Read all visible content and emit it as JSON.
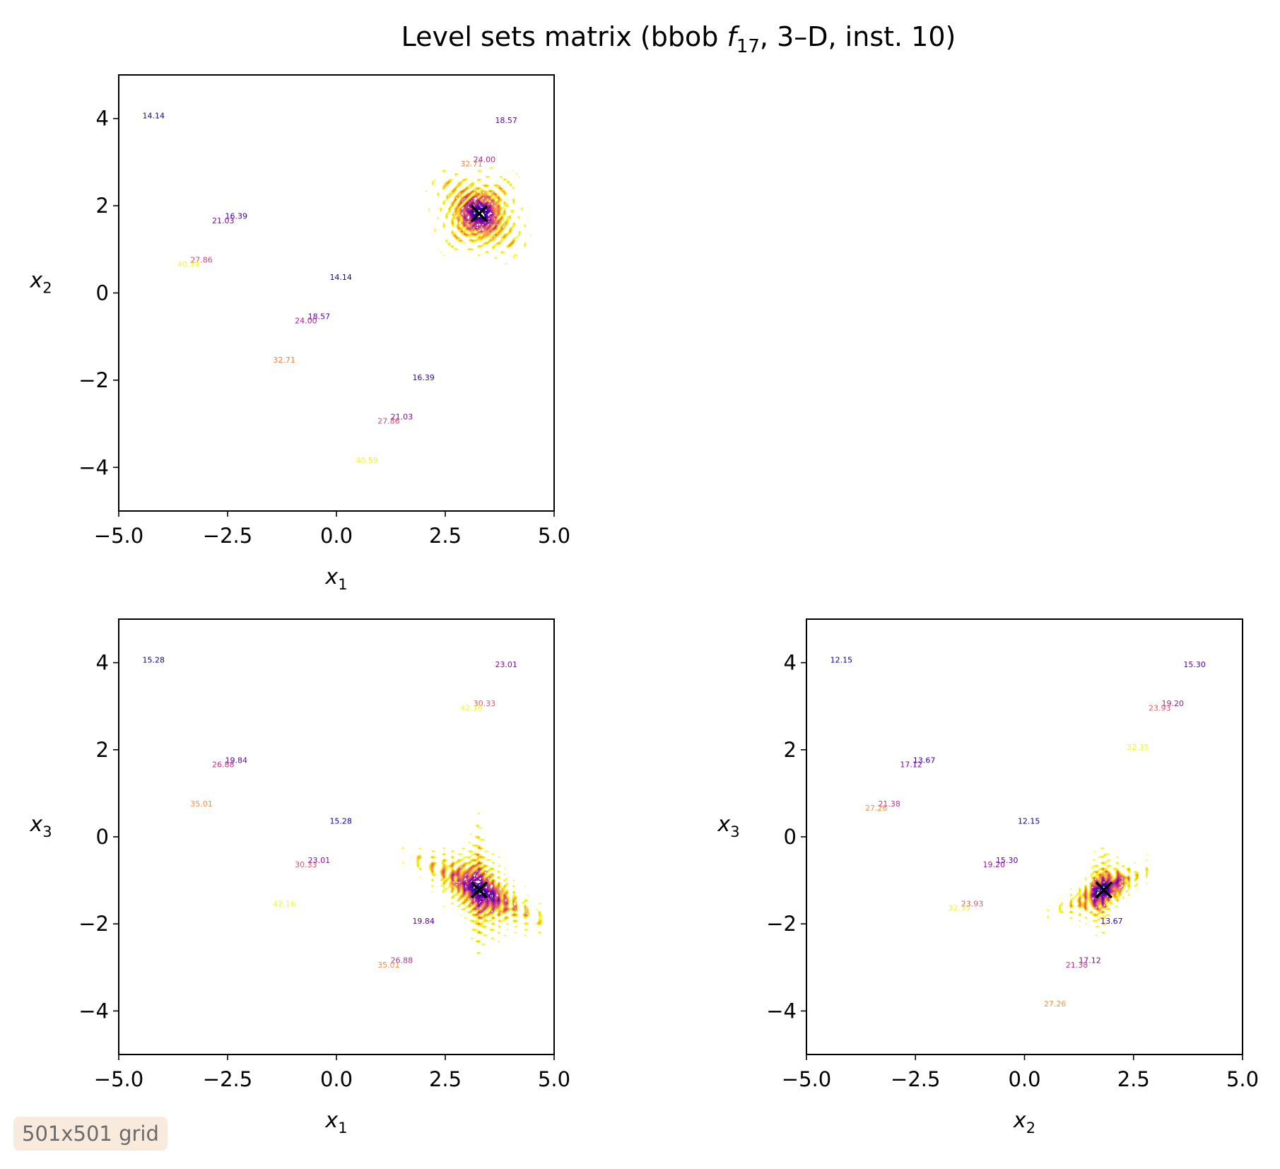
{
  "chart_data": {
    "title_parts": {
      "pre": "Level sets matrix (bbob ",
      "fn": "f",
      "sub": "17",
      "post": ", 3–D, inst. 10)"
    },
    "type": "contour",
    "colormap": "plasma",
    "grid": false,
    "footnote": "501x501 grid",
    "marker": "x",
    "optimum": {
      "x1": 3.28,
      "x2": 1.82,
      "x3": -1.22
    },
    "panels": [
      {
        "id": "x1-x2",
        "xvar": "x1",
        "yvar": "x2",
        "xlabel": "x",
        "xsub": "1",
        "ylabel": "x",
        "ysub": "2",
        "xlim": [
          -5,
          5
        ],
        "ylim": [
          -5,
          5
        ],
        "xticks": [
          "−5.0",
          "−2.5",
          "0.0",
          "2.5",
          "5.0"
        ],
        "yticks": [
          "−4",
          "−2",
          "0",
          "2",
          "4"
        ],
        "xtick_values": [
          -5,
          -2.5,
          0,
          2.5,
          5
        ],
        "ytick_values": [
          -4,
          -2,
          0,
          2,
          4
        ],
        "levels": [
          14.14,
          16.39,
          18.57,
          21.03,
          24.0,
          27.86,
          32.71,
          40.59
        ]
      },
      {
        "id": "x1-x3",
        "xvar": "x1",
        "yvar": "x3",
        "xlabel": "x",
        "xsub": "1",
        "ylabel": "x",
        "ysub": "3",
        "xlim": [
          -5,
          5
        ],
        "ylim": [
          -5,
          5
        ],
        "xticks": [
          "−5.0",
          "−2.5",
          "0.0",
          "2.5",
          "5.0"
        ],
        "yticks": [
          "−4",
          "−2",
          "0",
          "2",
          "4"
        ],
        "xtick_values": [
          -5,
          -2.5,
          0,
          2.5,
          5
        ],
        "ytick_values": [
          -4,
          -2,
          0,
          2,
          4
        ],
        "levels": [
          15.28,
          19.84,
          23.01,
          26.88,
          30.33,
          35.01,
          42.16
        ]
      },
      {
        "id": "x2-x3",
        "xvar": "x2",
        "yvar": "x3",
        "xlabel": "x",
        "xsub": "2",
        "ylabel": "x",
        "ysub": "3",
        "xlim": [
          -5,
          5
        ],
        "ylim": [
          -5,
          5
        ],
        "xticks": [
          "−5.0",
          "−2.5",
          "0.0",
          "2.5",
          "5.0"
        ],
        "yticks": [
          "−4",
          "−2",
          "0",
          "2",
          "4"
        ],
        "xtick_values": [
          -5,
          -2.5,
          0,
          2.5,
          5
        ],
        "ytick_values": [
          -4,
          -2,
          0,
          2,
          4
        ],
        "levels": [
          12.15,
          13.67,
          15.3,
          17.12,
          19.2,
          21.38,
          23.93,
          27.26,
          32.35
        ]
      }
    ]
  }
}
